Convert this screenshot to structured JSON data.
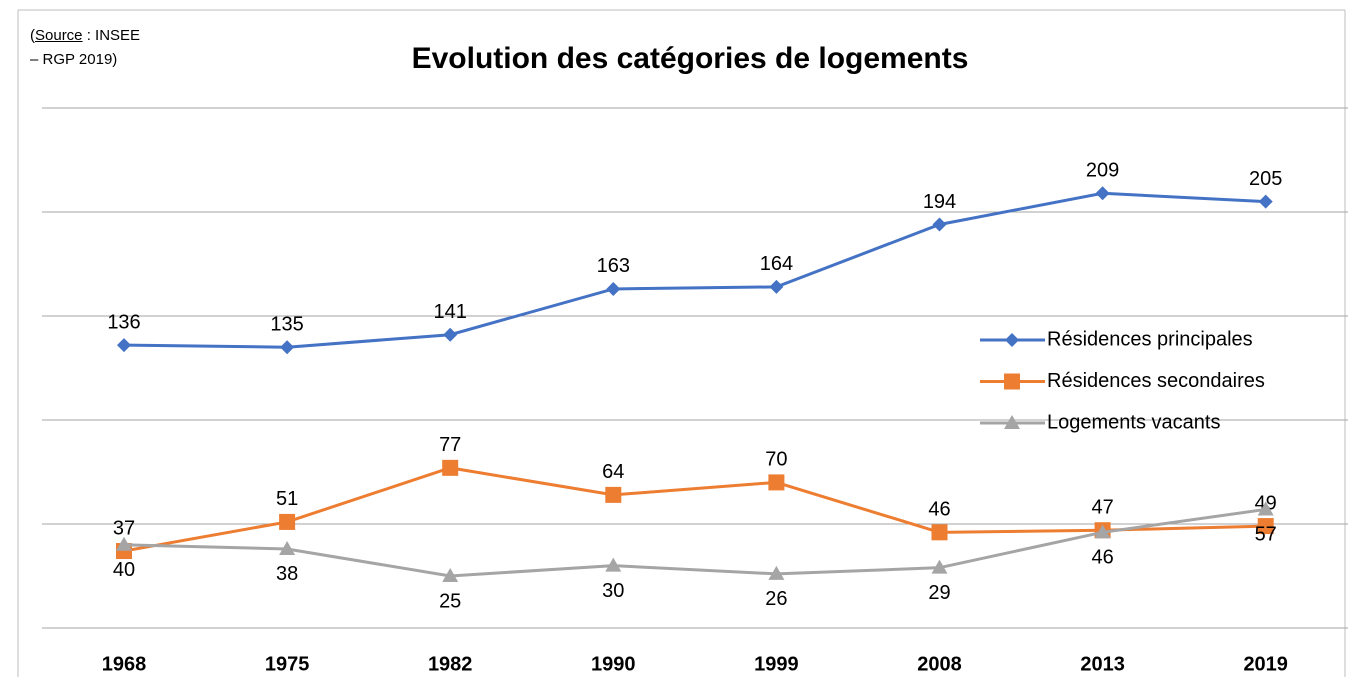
{
  "chart_data": {
    "type": "line",
    "title": "Evolution des catégories de logements",
    "source": [
      "(",
      "Source",
      " : INSEE",
      "– RGP 2019)"
    ],
    "categories": [
      "1968",
      "1975",
      "1982",
      "1990",
      "1999",
      "2008",
      "2013",
      "2019"
    ],
    "series": [
      {
        "name": "Résidences principales",
        "color": "#4472c4",
        "marker": "diamond",
        "label_position": "above",
        "values": [
          136,
          135,
          141,
          163,
          164,
          194,
          209,
          205
        ]
      },
      {
        "name": "Résidences secondaires",
        "color": "#ed7d31",
        "marker": "square",
        "label_position": "above",
        "values": [
          37,
          51,
          77,
          64,
          70,
          46,
          47,
          49
        ]
      },
      {
        "name": "Logements vacants",
        "color": "#a5a5a5",
        "marker": "triangle",
        "label_position": "below",
        "values": [
          40,
          38,
          25,
          30,
          26,
          29,
          46,
          57
        ]
      }
    ],
    "ylim": [
      0,
      250
    ],
    "yticks": [
      0,
      50,
      100,
      150,
      200,
      250
    ],
    "grid": true,
    "legend": "right"
  }
}
